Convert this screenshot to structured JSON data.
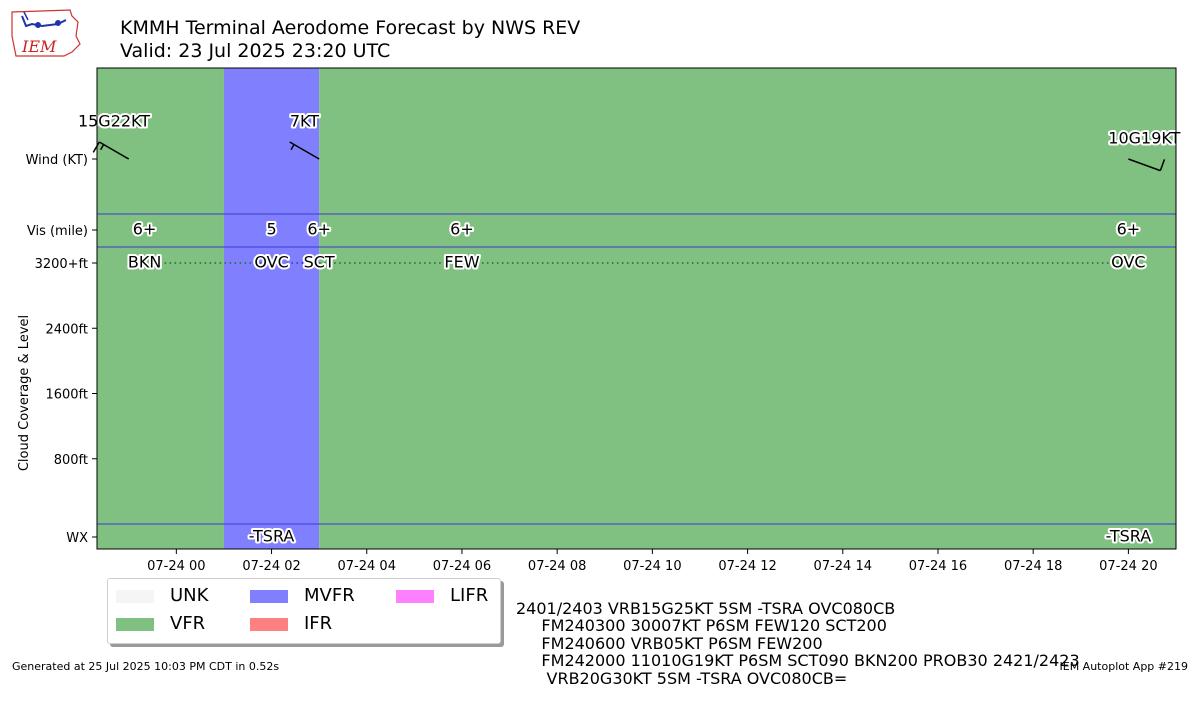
{
  "header": {
    "title": "KMMH Terminal Aerodome Forecast by NWS REV",
    "subtitle": "Valid: 23 Jul 2025 23:20 UTC",
    "logo_text": "IEM"
  },
  "chart_data": {
    "type": "timeline",
    "x_range": [
      "2025-07-23 22:20",
      "2025-07-24 21:00"
    ],
    "x_ticks": [
      {
        "t": "2025-07-24 00:00",
        "label": "07-24 00"
      },
      {
        "t": "2025-07-24 02:00",
        "label": "07-24 02"
      },
      {
        "t": "2025-07-24 04:00",
        "label": "07-24 04"
      },
      {
        "t": "2025-07-24 06:00",
        "label": "07-24 06"
      },
      {
        "t": "2025-07-24 08:00",
        "label": "07-24 08"
      },
      {
        "t": "2025-07-24 10:00",
        "label": "07-24 10"
      },
      {
        "t": "2025-07-24 12:00",
        "label": "07-24 12"
      },
      {
        "t": "2025-07-24 14:00",
        "label": "07-24 14"
      },
      {
        "t": "2025-07-24 16:00",
        "label": "07-24 16"
      },
      {
        "t": "2025-07-24 18:00",
        "label": "07-24 18"
      },
      {
        "t": "2025-07-24 20:00",
        "label": "07-24 20"
      }
    ],
    "y_tick_labels": [
      "Wind (KT)",
      "Vis (mile)",
      "3200+ft",
      "2400ft",
      "1600ft",
      "800ft",
      "WX"
    ],
    "cloud_level_ticks": [
      {
        "ft": 3200,
        "label": "3200+ft"
      },
      {
        "ft": 2400,
        "label": "2400ft"
      },
      {
        "ft": 1600,
        "label": "1600ft"
      },
      {
        "ft": 800,
        "label": "800ft"
      }
    ],
    "ylabel": "Cloud Coverage & Level",
    "category_colors": {
      "UNK": "#f5f5f5",
      "VFR": "#80c080",
      "MVFR": "#8080ff",
      "IFR": "#ff8080",
      "LIFR": "#ff80ff"
    },
    "flight_category": [
      {
        "start": "2025-07-23 22:20",
        "end": "2025-07-24 01:00",
        "cat": "VFR"
      },
      {
        "start": "2025-07-24 01:00",
        "end": "2025-07-24 03:00",
        "cat": "MVFR"
      },
      {
        "start": "2025-07-24 03:00",
        "end": "2025-07-24 21:00",
        "cat": "VFR"
      }
    ],
    "wind": [
      {
        "t": "2025-07-23 23:00",
        "label": "15G22KT",
        "dir": 300,
        "speed": 15
      },
      {
        "t": "2025-07-24 03:00",
        "label": "7KT",
        "dir": 300,
        "speed": 7
      },
      {
        "t": "2025-07-24 20:00",
        "label": "10G19KT",
        "dir": 110,
        "speed": 10
      }
    ],
    "visibility": [
      {
        "t": "2025-07-23 23:20",
        "label": "6+"
      },
      {
        "t": "2025-07-24 02:00",
        "label": "5"
      },
      {
        "t": "2025-07-24 03:00",
        "label": "6+"
      },
      {
        "t": "2025-07-24 06:00",
        "label": "6+"
      },
      {
        "t": "2025-07-24 20:00",
        "label": "6+"
      }
    ],
    "clouds": [
      {
        "t": "2025-07-23 23:20",
        "label": "BKN"
      },
      {
        "t": "2025-07-24 02:00",
        "label": "OVC"
      },
      {
        "t": "2025-07-24 03:00",
        "label": "SCT"
      },
      {
        "t": "2025-07-24 06:00",
        "label": "FEW"
      },
      {
        "t": "2025-07-24 20:00",
        "label": "OVC"
      }
    ],
    "weather": [
      {
        "t": "2025-07-24 02:00",
        "label": "-TSRA"
      },
      {
        "t": "2025-07-24 20:00",
        "label": "-TSRA"
      }
    ]
  },
  "legend": {
    "items": [
      {
        "name": "UNK",
        "color": "#f5f5f5"
      },
      {
        "name": "VFR",
        "color": "#80c080"
      },
      {
        "name": "MVFR",
        "color": "#8080ff"
      },
      {
        "name": "IFR",
        "color": "#ff8080"
      },
      {
        "name": "LIFR",
        "color": "#ff80ff"
      }
    ]
  },
  "taf_lines": [
    "2401/2403 VRB15G25KT 5SM -TSRA OVC080CB",
    "     FM240300 30007KT P6SM FEW120 SCT200",
    "     FM240600 VRB05KT P6SM FEW200",
    "     FM242000 11010G19KT P6SM SCT090 BKN200 PROB30 2421/2423",
    "      VRB20G30KT 5SM -TSRA OVC080CB="
  ],
  "footer": {
    "generated": "Generated at 25 Jul 2025 10:03 PM CDT in 0.52s",
    "app": "IEM Autoplot App #219"
  }
}
